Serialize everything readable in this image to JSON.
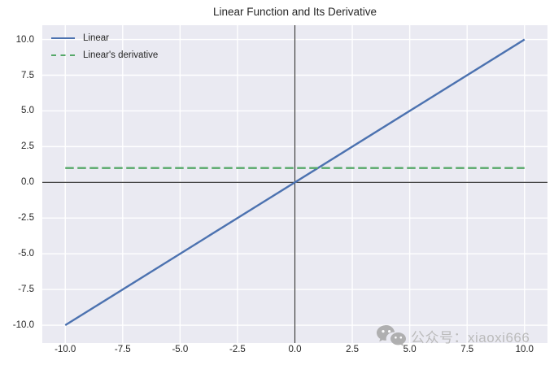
{
  "chart_data": {
    "type": "line",
    "title": "Linear Function and Its Derivative",
    "xlabel": "",
    "ylabel": "",
    "xlim": [
      -11,
      11
    ],
    "ylim": [
      -11.25,
      11
    ],
    "grid": true,
    "legend_position": "upper left",
    "figure_background": "#ffffff",
    "plot_background": "#eaeaf2",
    "gridline_color": "#ffffff",
    "text_color": "#262626",
    "zero_axis_lines": {
      "x": 0,
      "y": 0,
      "color": "#2e2e2e"
    },
    "x_ticks": [
      {
        "value": -10,
        "label": "-10.0"
      },
      {
        "value": -7.5,
        "label": "-7.5"
      },
      {
        "value": -5,
        "label": "-5.0"
      },
      {
        "value": -2.5,
        "label": "-2.5"
      },
      {
        "value": 0,
        "label": "0.0"
      },
      {
        "value": 2.5,
        "label": "2.5"
      },
      {
        "value": 5,
        "label": "5.0"
      },
      {
        "value": 7.5,
        "label": "7.5"
      },
      {
        "value": 10,
        "label": "10.0"
      }
    ],
    "y_ticks": [
      {
        "value": 10,
        "label": "10.0"
      },
      {
        "value": 7.5,
        "label": "7.5"
      },
      {
        "value": 5,
        "label": "5.0"
      },
      {
        "value": 2.5,
        "label": "2.5"
      },
      {
        "value": 0,
        "label": "0.0"
      },
      {
        "value": -2.5,
        "label": "-2.5"
      },
      {
        "value": -5,
        "label": "-5.0"
      },
      {
        "value": -7.5,
        "label": "-7.5"
      },
      {
        "value": -10,
        "label": "-10.0"
      }
    ],
    "series": [
      {
        "name": "Linear",
        "color": "#4c72b0",
        "line_style": "solid",
        "x": [
          -10,
          10
        ],
        "y": [
          -10,
          10
        ]
      },
      {
        "name": "Linear's derivative",
        "color": "#55a868",
        "line_style": "dashed",
        "x": [
          -10,
          10
        ],
        "y": [
          1,
          1
        ]
      }
    ]
  },
  "watermark": {
    "icon": "wechat-icon",
    "text": "公众号：xiaoxi666",
    "color": "#b6b6b6"
  }
}
